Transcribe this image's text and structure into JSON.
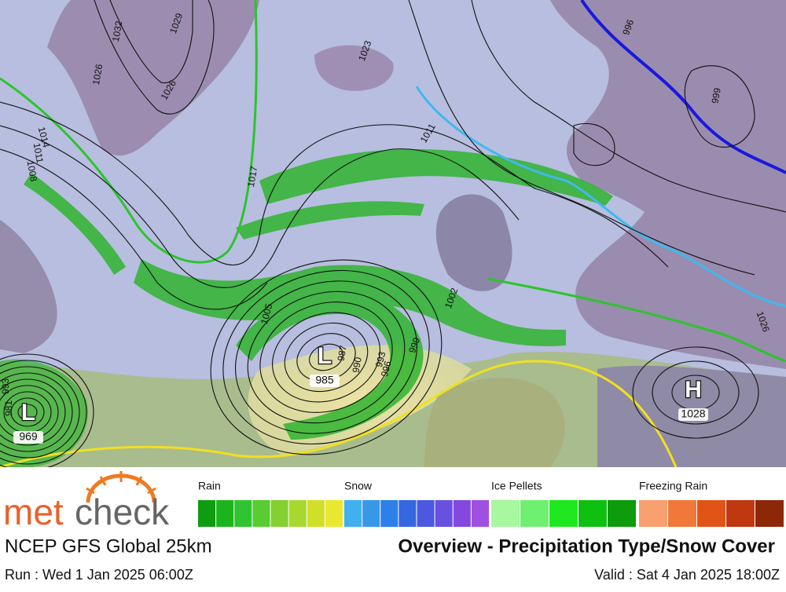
{
  "map": {
    "centers": [
      {
        "letter": "L",
        "pressure": "985"
      },
      {
        "letter": "L",
        "pressure": "969"
      },
      {
        "letter": "H",
        "pressure": "1028"
      }
    ],
    "isobar_labels": [
      "1032",
      "1029",
      "1026",
      "1023",
      "1017",
      "1014",
      "1011",
      "1008",
      "1005",
      "1002",
      "999",
      "996",
      "993",
      "990",
      "987",
      "1011",
      "999",
      "1026",
      "1026",
      "996",
      "993",
      "981"
    ]
  },
  "legend": {
    "categories": [
      {
        "label": "Rain",
        "colors": [
          "#109c10",
          "#1cb41c",
          "#30c430",
          "#58cc30",
          "#84d030",
          "#a8d830",
          "#d0e028",
          "#e8e830"
        ]
      },
      {
        "label": "Snow",
        "colors": [
          "#40b0f0",
          "#3898e8",
          "#2c80e8",
          "#3468e0",
          "#4c58e0",
          "#6850e0",
          "#8448e0",
          "#a050e0"
        ]
      },
      {
        "label": "Ice Pellets",
        "colors": [
          "#a8f8a0",
          "#70f070",
          "#20e820",
          "#10c010",
          "#0c9c0c"
        ]
      },
      {
        "label": "Freezing Rain",
        "colors": [
          "#f8a070",
          "#f07838",
          "#e05418",
          "#c03810",
          "#8c2808"
        ]
      }
    ]
  },
  "footer": {
    "brand": [
      "met",
      "check"
    ],
    "model": "NCEP GFS Global 25km",
    "product": "Overview - Precipitation Type/Snow Cover",
    "run": "Run : Wed 1 Jan 2025 06:00Z",
    "valid": "Valid : Sat 4 Jan 2025 18:00Z"
  }
}
